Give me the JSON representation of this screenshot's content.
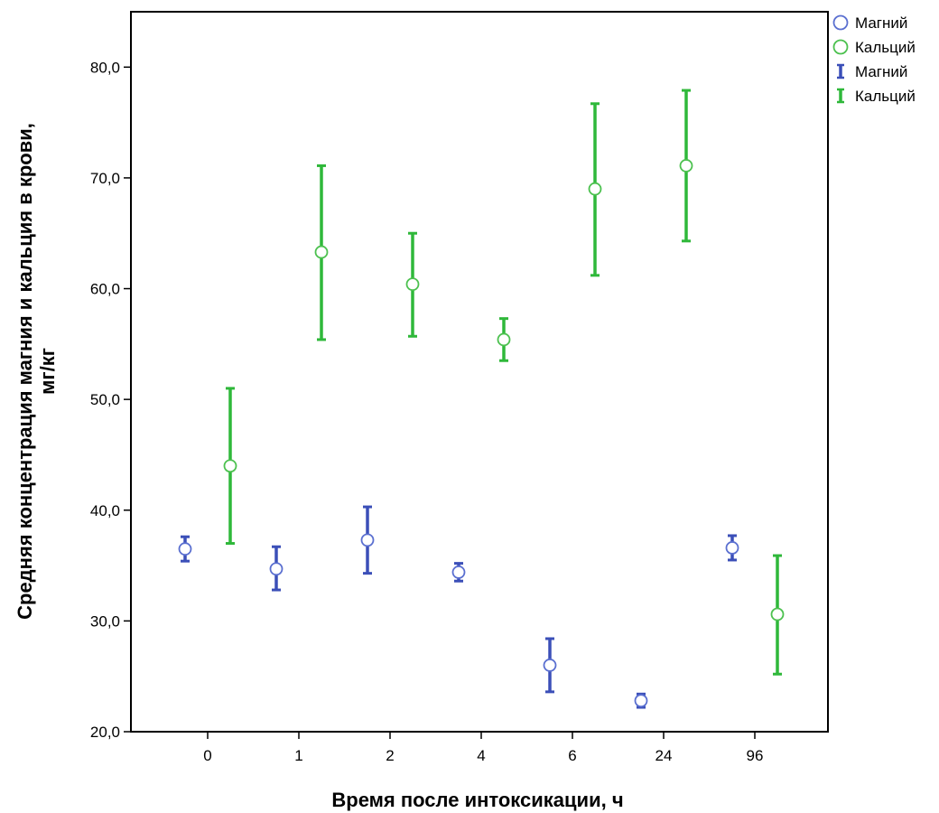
{
  "chart_data": {
    "type": "scatter",
    "xlabel": "Время после интоксикации, ч",
    "ylabel_line1": "Средняя концентрация магния и кальция в крови,",
    "ylabel_line2": "мг/кг",
    "categories": [
      "0",
      "1",
      "2",
      "4",
      "6",
      "24",
      "96"
    ],
    "ylim": [
      20,
      85
    ],
    "yticks": [
      20,
      30,
      40,
      50,
      60,
      70,
      80
    ],
    "ytick_labels": [
      "20,0",
      "30,0",
      "40,0",
      "50,0",
      "60,0",
      "70,0",
      "80,0"
    ],
    "grid": false,
    "legend_position": "top-right, outside plot",
    "legend": {
      "marker_entries": [
        "Магний",
        "Кальций"
      ],
      "errorbar_entries": [
        "Магний",
        "Кальций"
      ]
    },
    "series": [
      {
        "name": "Магний",
        "color": "#3b4fb8",
        "marker_color": "#5a6fd0",
        "mean": [
          36.5,
          34.7,
          37.3,
          34.4,
          26.0,
          22.8,
          36.6
        ],
        "lower": [
          35.4,
          32.8,
          34.3,
          33.6,
          23.6,
          22.2,
          35.5
        ],
        "upper": [
          37.6,
          36.7,
          40.3,
          35.2,
          28.4,
          23.4,
          37.7
        ]
      },
      {
        "name": "Кальций",
        "color": "#2fb83a",
        "marker_color": "#4cc14f",
        "mean": [
          44.0,
          63.3,
          60.4,
          55.4,
          69.0,
          71.1,
          30.6
        ],
        "lower": [
          37.0,
          55.4,
          55.7,
          53.5,
          61.2,
          64.3,
          25.2
        ],
        "upper": [
          51.0,
          71.1,
          65.0,
          57.3,
          76.7,
          77.9,
          35.9
        ]
      }
    ]
  }
}
